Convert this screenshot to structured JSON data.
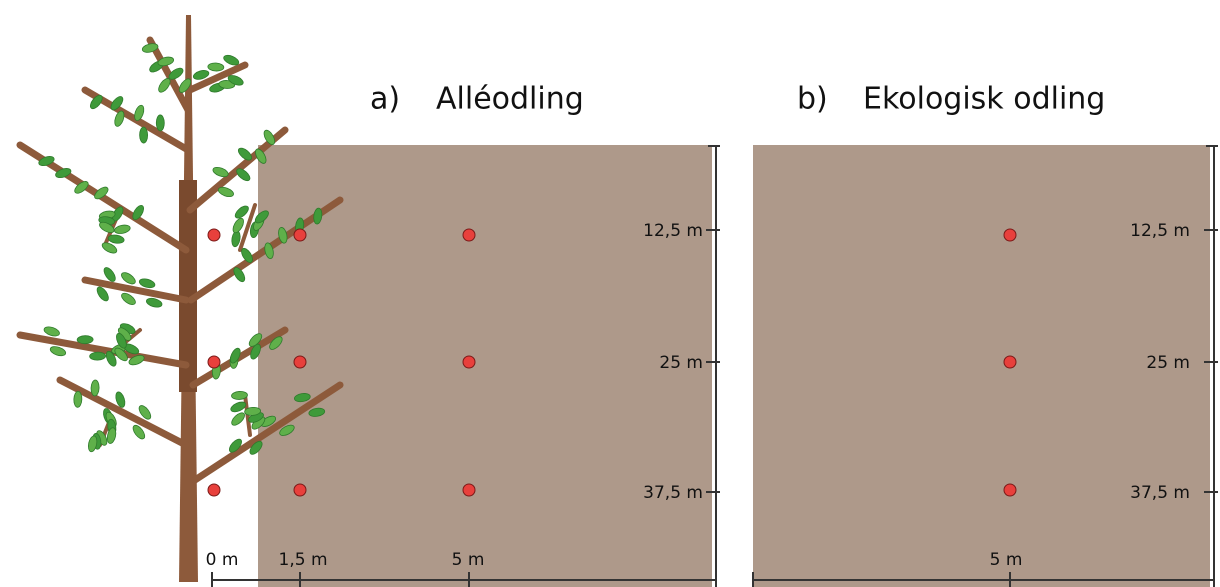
{
  "panels": [
    {
      "label": "a)",
      "title": "Alléodling",
      "y_labels": [
        "12,5 m",
        "25 m",
        "37,5 m"
      ],
      "x_labels": [
        "0 m",
        "1,5 m",
        "5 m"
      ]
    },
    {
      "label": "b)",
      "title": "Ekologisk odling",
      "y_labels": [
        "12,5 m",
        "25 m",
        "37,5 m"
      ],
      "x_labels": [
        "5 m"
      ]
    }
  ]
}
